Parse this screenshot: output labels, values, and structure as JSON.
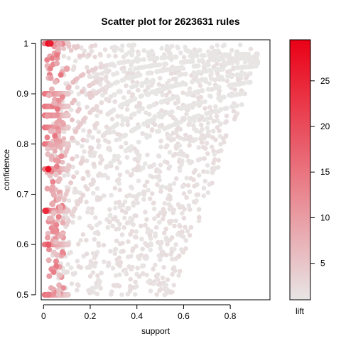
{
  "chart_data": {
    "type": "scatter",
    "title": "Scatter plot for 2623631 rules",
    "xlabel": "support",
    "ylabel": "confidence",
    "xlim": [
      -0.01,
      0.97
    ],
    "ylim": [
      0.49,
      1.0075
    ],
    "x_ticks": [
      0,
      0.2,
      0.4,
      0.6,
      0.8
    ],
    "x_tick_labels": [
      "0",
      "0.2",
      "0.4",
      "0.6",
      "0.8"
    ],
    "y_ticks": [
      0.5,
      0.6,
      0.7,
      0.8,
      0.9,
      1
    ],
    "y_tick_labels": [
      "0.5",
      "0.6",
      "0.7",
      "0.8",
      "0.9",
      "1"
    ],
    "color_scale": {
      "label": "lift",
      "min": 1,
      "max": 29.5,
      "ticks": [
        5,
        10,
        15,
        20,
        25
      ],
      "tick_labels": [
        "5",
        "10",
        "15",
        "20",
        "25"
      ],
      "low_color": "#e8e5e5",
      "high_color": "#ea0016"
    },
    "sample_points": [
      {
        "support": 0.02,
        "confidence": 1.0,
        "lift": 28
      },
      {
        "support": 0.03,
        "confidence": 1.0,
        "lift": 26
      },
      {
        "support": 0.02,
        "confidence": 0.75,
        "lift": 27
      },
      {
        "support": 0.01,
        "confidence": 0.667,
        "lift": 24
      },
      {
        "support": 0.02,
        "confidence": 0.6,
        "lift": 18
      },
      {
        "support": 0.02,
        "confidence": 0.5,
        "lift": 14
      },
      {
        "support": 0.1,
        "confidence": 0.95,
        "lift": 9
      },
      {
        "support": 0.2,
        "confidence": 0.9,
        "lift": 4
      },
      {
        "support": 0.4,
        "confidence": 0.75,
        "lift": 2
      },
      {
        "support": 0.6,
        "confidence": 0.85,
        "lift": 1.5
      },
      {
        "support": 0.8,
        "confidence": 0.97,
        "lift": 1.2
      },
      {
        "support": 0.91,
        "confidence": 0.975,
        "lift": 1.1
      }
    ]
  }
}
